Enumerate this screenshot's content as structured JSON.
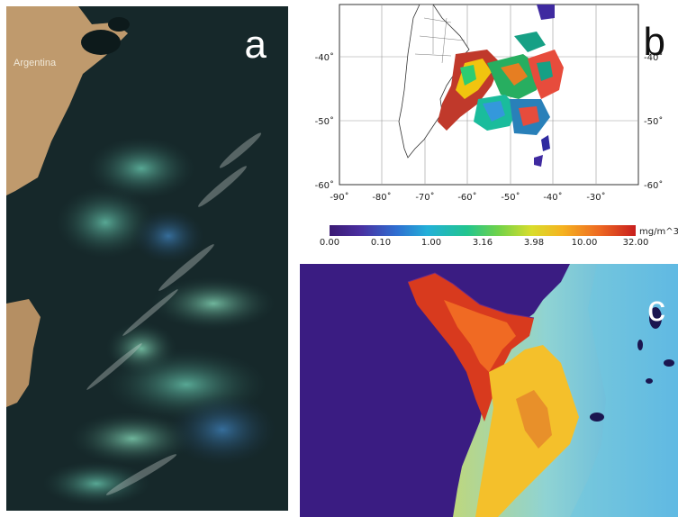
{
  "panel_a": {
    "letter": "a",
    "country_label": "Argentina"
  },
  "panel_b": {
    "letter": "b",
    "y_ticks": [
      "-40˚",
      "-50˚",
      "-60˚"
    ],
    "y_ticks_right": [
      "-40˚",
      "-50˚",
      "-60˚"
    ],
    "x_ticks": [
      "-90˚",
      "-80˚",
      "-70˚",
      "-60˚",
      "-50˚",
      "-40˚",
      "-30˚"
    ]
  },
  "colorbar": {
    "unit": "mg/m^3",
    "ticks": [
      "0.00",
      "0.10",
      "1.00",
      "3.16",
      "3.98",
      "10.00",
      "32.00"
    ]
  },
  "panel_c": {
    "letter": "c"
  }
}
